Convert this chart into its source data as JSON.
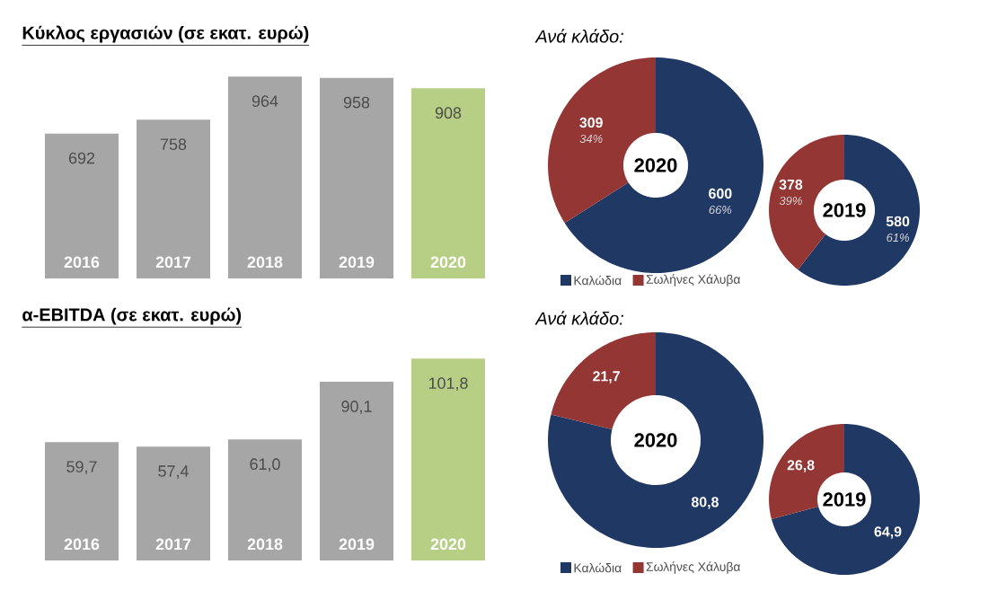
{
  "chart_data": [
    {
      "type": "bar",
      "title": "Κύκλος εργασιών (σε εκατ. ευρώ)",
      "categories": [
        "2016",
        "2017",
        "2018",
        "2019",
        "2020"
      ],
      "values": [
        692,
        758,
        964,
        958,
        908
      ],
      "colors": [
        "#a6a6a6",
        "#a6a6a6",
        "#a6a6a6",
        "#a6a6a6",
        "#b6cf84"
      ],
      "value_labels": [
        "692",
        "758",
        "964",
        "958",
        "908"
      ]
    },
    {
      "type": "donut",
      "title": "Ανά κλάδο:",
      "categories": [
        "Καλώδια",
        "Σωλήνες Χάλυβα"
      ],
      "values": [
        600,
        309
      ],
      "colors": [
        "#1f3864",
        "#943634"
      ],
      "value_labels": [
        "600",
        "309"
      ],
      "annotations": [
        "2020",
        "66%",
        "34%"
      ],
      "legend": "bottom left"
    },
    {
      "type": "donut",
      "categories": [
        null,
        null
      ],
      "values": [
        580,
        378
      ],
      "colors": [
        "#1f3864",
        "#943634"
      ],
      "value_labels": [
        "580",
        "378"
      ],
      "annotations": [
        "2019",
        "61%",
        "39%"
      ]
    },
    {
      "type": "bar",
      "title": "α-EBITDA (σε εκατ. ευρώ)",
      "categories": [
        "2016",
        "2017",
        "2018",
        "2019",
        "2020"
      ],
      "values": [
        59.7,
        57.4,
        61.0,
        90.1,
        101.8
      ],
      "colors": [
        "#a6a6a6",
        "#a6a6a6",
        "#a6a6a6",
        "#a6a6a6",
        "#b6cf84"
      ],
      "value_labels": [
        "59,7",
        "57,4",
        "61,0",
        "90,1",
        "101,8"
      ]
    },
    {
      "type": "donut",
      "title": "Ανά κλάδο:",
      "categories": [
        "Καλώδια",
        "Σωλήνες Χάλυβα"
      ],
      "values": [
        80.8,
        21.7
      ],
      "colors": [
        "#1f3864",
        "#943634"
      ],
      "value_labels": [
        "80,8",
        "21,7"
      ],
      "annotations": [
        "2020"
      ],
      "legend": "bottom left"
    },
    {
      "type": "donut",
      "categories": [
        null,
        null
      ],
      "values": [
        64.9,
        26.8
      ],
      "colors": [
        "#1f3864",
        "#943634"
      ],
      "value_labels": [
        "64,9",
        "26,8"
      ],
      "annotations": [
        "2019"
      ]
    }
  ]
}
